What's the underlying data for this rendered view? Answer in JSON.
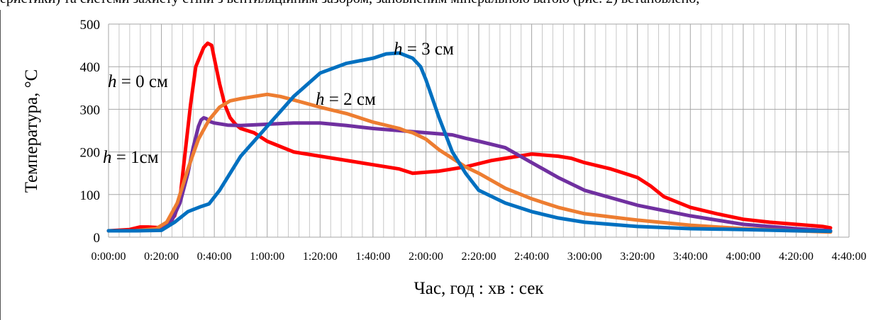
{
  "top_text": "еристики) та системи захисту стіни з вентиляційним зазором, заповненим мінеральною ватою (рис. 2) вста­новлено, ",
  "chart_data": {
    "type": "line",
    "title": "",
    "xlabel": "Час, год : хв : сек",
    "ylabel": "Температура, °C",
    "ylim": [
      0,
      500
    ],
    "yticks": [
      "0",
      "100",
      "200",
      "300",
      "400",
      "500"
    ],
    "xlim": [
      0,
      280
    ],
    "xticks": [
      "0:00:00",
      "0:20:00",
      "0:40:00",
      "1:00:00",
      "1:20:00",
      "1:40:00",
      "2:00:00",
      "2:20:00",
      "2:40:00",
      "3:00:00",
      "3:20:00",
      "3:40:00",
      "4:00:00",
      "4:20:00",
      "4:40:00"
    ],
    "grid": true,
    "series": [
      {
        "name": "h = 0 см",
        "color": "#ff0000",
        "x": [
          0,
          8,
          12,
          15,
          20,
          22,
          25,
          27,
          29,
          31,
          33,
          36,
          37.5,
          39,
          40,
          42,
          44,
          46,
          48,
          50,
          55,
          60,
          70,
          80,
          100,
          110,
          115,
          125,
          135,
          145,
          155,
          160,
          170,
          175,
          180,
          190,
          200,
          205,
          210,
          220,
          230,
          240,
          250,
          260,
          270,
          273
        ],
        "y": [
          15,
          18,
          24,
          24,
          22,
          28,
          50,
          90,
          200,
          310,
          400,
          445,
          455,
          450,
          420,
          360,
          310,
          280,
          265,
          255,
          245,
          225,
          200,
          190,
          170,
          160,
          150,
          155,
          165,
          180,
          190,
          195,
          190,
          185,
          175,
          160,
          140,
          120,
          95,
          70,
          55,
          42,
          35,
          30,
          25,
          22
        ]
      },
      {
        "name": "h = 1см",
        "color": "#7030a0",
        "x": [
          0,
          10,
          17,
          20,
          24,
          27,
          30,
          32,
          34,
          35,
          36,
          37,
          38,
          40,
          45,
          50,
          60,
          70,
          80,
          90,
          100,
          110,
          120,
          130,
          135,
          140,
          150,
          160,
          170,
          180,
          200,
          220,
          240,
          260,
          273
        ],
        "y": [
          15,
          15,
          17,
          22,
          40,
          80,
          150,
          210,
          260,
          275,
          280,
          278,
          272,
          268,
          263,
          262,
          265,
          268,
          268,
          262,
          255,
          250,
          245,
          240,
          232,
          225,
          210,
          175,
          140,
          110,
          75,
          50,
          30,
          20,
          15
        ]
      },
      {
        "name": "h = 2 см",
        "color": "#ed7d31",
        "x": [
          0,
          10,
          18,
          22,
          26,
          30,
          34,
          38,
          42,
          46,
          50,
          55,
          60,
          65,
          70,
          80,
          90,
          100,
          110,
          112,
          115,
          120,
          125,
          130,
          135,
          140,
          150,
          160,
          170,
          180,
          200,
          220,
          240,
          260,
          273
        ],
        "y": [
          15,
          15,
          20,
          35,
          80,
          160,
          230,
          275,
          305,
          320,
          325,
          330,
          335,
          330,
          322,
          305,
          290,
          270,
          255,
          250,
          245,
          230,
          205,
          185,
          165,
          150,
          115,
          90,
          70,
          55,
          40,
          28,
          20,
          15,
          12
        ]
      },
      {
        "name": "h = 3 см",
        "color": "#0070c0",
        "x": [
          0,
          10,
          20,
          25,
          30,
          35,
          38,
          42,
          50,
          60,
          70,
          80,
          90,
          100,
          105,
          110,
          115,
          118,
          120,
          125,
          130,
          135,
          140,
          150,
          160,
          170,
          180,
          200,
          220,
          240,
          260,
          273
        ],
        "y": [
          15,
          15,
          16,
          35,
          60,
          72,
          78,
          110,
          190,
          260,
          330,
          385,
          408,
          420,
          430,
          432,
          420,
          400,
          370,
          280,
          200,
          150,
          110,
          80,
          60,
          45,
          35,
          25,
          20,
          18,
          15,
          14
        ]
      }
    ],
    "annotations": [
      {
        "italic": "h",
        "text": " = 0 см"
      },
      {
        "italic": "h",
        "text": " = 1см"
      },
      {
        "italic": "h",
        "text": " = 2 см"
      },
      {
        "italic": "h",
        "text": " = 3 см"
      }
    ]
  }
}
